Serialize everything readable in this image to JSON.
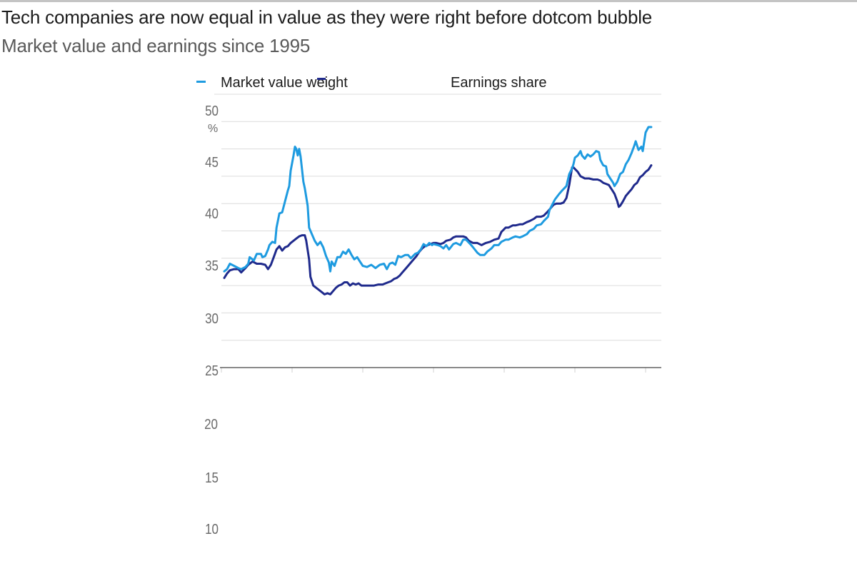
{
  "header": {
    "title": "Tech companies are now equal in value as they were right before dotcom bubble",
    "subtitle": "Market value and earnings since 1995"
  },
  "colors": {
    "market_value": "#1e9be0",
    "earnings": "#1f2a8c",
    "grid": "#dcdcdc",
    "axis": "#444444"
  },
  "chart_data": {
    "type": "line",
    "title": "Tech companies are now equal in value as they were right before dotcom bubble",
    "subtitle": "Market value and earnings since 1995",
    "xlabel": "",
    "ylabel": "%",
    "y_unit_label": "%",
    "ylim": [
      25,
      50
    ],
    "xlim": [
      1995,
      2026.5
    ],
    "grid": true,
    "grid_step": 2.5,
    "x_ticks": [
      1995,
      2000,
      2005,
      2010,
      2015,
      2020,
      2025
    ],
    "y_tick_labels": [
      "50",
      "45",
      "40",
      "35",
      "30",
      "25",
      "20",
      "15",
      "10"
    ],
    "legend": {
      "placement": "top",
      "entries": [
        "Market value weight",
        "Earnings share"
      ]
    },
    "series": [
      {
        "name": "Market value weight",
        "color": "#1e9be0",
        "points": [
          [
            1995.2,
            33.8
          ],
          [
            1995.4,
            34.0
          ],
          [
            1995.6,
            34.5
          ],
          [
            1995.9,
            34.3
          ],
          [
            1996.2,
            34.1
          ],
          [
            1996.4,
            34.0
          ],
          [
            1996.7,
            34.2
          ],
          [
            1996.9,
            34.5
          ],
          [
            1997.0,
            35.1
          ],
          [
            1997.3,
            34.8
          ],
          [
            1997.5,
            35.4
          ],
          [
            1997.8,
            35.4
          ],
          [
            1997.9,
            35.1
          ],
          [
            1998.1,
            35.2
          ],
          [
            1998.3,
            35.8
          ],
          [
            1998.4,
            36.2
          ],
          [
            1998.6,
            36.5
          ],
          [
            1998.8,
            36.4
          ],
          [
            1998.9,
            37.8
          ],
          [
            1999.1,
            39.1
          ],
          [
            1999.3,
            39.2
          ],
          [
            1999.5,
            40.2
          ],
          [
            1999.7,
            41.2
          ],
          [
            1999.8,
            41.6
          ],
          [
            1999.9,
            43.0
          ],
          [
            2000.1,
            44.4
          ],
          [
            2000.2,
            45.2
          ],
          [
            2000.3,
            45.0
          ],
          [
            2000.4,
            44.4
          ],
          [
            2000.5,
            45.0
          ],
          [
            2000.6,
            44.3
          ],
          [
            2000.8,
            42.0
          ],
          [
            2000.9,
            41.4
          ],
          [
            2001.1,
            39.8
          ],
          [
            2001.2,
            37.8
          ],
          [
            2001.4,
            37.2
          ],
          [
            2001.6,
            36.6
          ],
          [
            2001.8,
            36.2
          ],
          [
            2002.0,
            36.5
          ],
          [
            2002.2,
            36.0
          ],
          [
            2002.4,
            35.2
          ],
          [
            2002.6,
            34.6
          ],
          [
            2002.7,
            33.8
          ],
          [
            2002.8,
            34.7
          ],
          [
            2003.0,
            34.3
          ],
          [
            2003.2,
            35.1
          ],
          [
            2003.4,
            35.1
          ],
          [
            2003.6,
            35.6
          ],
          [
            2003.8,
            35.4
          ],
          [
            2004.0,
            35.8
          ],
          [
            2004.2,
            35.3
          ],
          [
            2004.4,
            34.9
          ],
          [
            2004.6,
            35.1
          ],
          [
            2004.8,
            34.7
          ],
          [
            2005.0,
            34.3
          ],
          [
            2005.3,
            34.2
          ],
          [
            2005.6,
            34.4
          ],
          [
            2005.9,
            34.1
          ],
          [
            2006.2,
            34.4
          ],
          [
            2006.5,
            34.5
          ],
          [
            2006.7,
            34.0
          ],
          [
            2006.9,
            34.5
          ],
          [
            2007.1,
            34.6
          ],
          [
            2007.3,
            34.4
          ],
          [
            2007.5,
            35.2
          ],
          [
            2007.7,
            35.1
          ],
          [
            2008.0,
            35.3
          ],
          [
            2008.2,
            35.3
          ],
          [
            2008.4,
            35.0
          ],
          [
            2008.7,
            35.4
          ],
          [
            2008.9,
            35.5
          ],
          [
            2009.1,
            35.8
          ],
          [
            2009.3,
            36.3
          ],
          [
            2009.5,
            36.1
          ],
          [
            2009.7,
            36.4
          ],
          [
            2009.9,
            36.2
          ],
          [
            2010.0,
            36.3
          ],
          [
            2010.3,
            36.2
          ],
          [
            2010.5,
            36.1
          ],
          [
            2010.7,
            35.9
          ],
          [
            2010.9,
            36.2
          ],
          [
            2011.1,
            35.8
          ],
          [
            2011.4,
            36.3
          ],
          [
            2011.6,
            36.4
          ],
          [
            2011.9,
            36.2
          ],
          [
            2012.1,
            36.7
          ],
          [
            2012.3,
            36.7
          ],
          [
            2012.6,
            36.3
          ],
          [
            2012.8,
            36.0
          ],
          [
            2013.1,
            35.5
          ],
          [
            2013.3,
            35.3
          ],
          [
            2013.6,
            35.3
          ],
          [
            2013.8,
            35.6
          ],
          [
            2014.1,
            35.9
          ],
          [
            2014.3,
            36.2
          ],
          [
            2014.6,
            36.2
          ],
          [
            2014.8,
            36.5
          ],
          [
            2015.1,
            36.7
          ],
          [
            2015.3,
            36.7
          ],
          [
            2015.6,
            36.9
          ],
          [
            2015.8,
            37.0
          ],
          [
            2016.1,
            36.9
          ],
          [
            2016.3,
            37.0
          ],
          [
            2016.6,
            37.2
          ],
          [
            2016.8,
            37.5
          ],
          [
            2017.1,
            37.7
          ],
          [
            2017.3,
            38.0
          ],
          [
            2017.6,
            38.1
          ],
          [
            2017.8,
            38.4
          ],
          [
            2018.1,
            38.8
          ],
          [
            2018.2,
            39.4
          ],
          [
            2018.4,
            39.9
          ],
          [
            2018.6,
            40.4
          ],
          [
            2018.9,
            40.9
          ],
          [
            2019.1,
            41.2
          ],
          [
            2019.4,
            41.6
          ],
          [
            2019.6,
            42.7
          ],
          [
            2019.8,
            43.2
          ],
          [
            2019.9,
            43.6
          ],
          [
            2020.0,
            44.2
          ],
          [
            2020.2,
            44.4
          ],
          [
            2020.4,
            44.8
          ],
          [
            2020.5,
            44.4
          ],
          [
            2020.7,
            44.1
          ],
          [
            2020.9,
            44.5
          ],
          [
            2021.1,
            44.3
          ],
          [
            2021.3,
            44.5
          ],
          [
            2021.5,
            44.8
          ],
          [
            2021.7,
            44.7
          ],
          [
            2021.8,
            44.0
          ],
          [
            2022.0,
            43.5
          ],
          [
            2022.2,
            43.4
          ],
          [
            2022.3,
            42.7
          ],
          [
            2022.5,
            42.3
          ],
          [
            2022.7,
            41.9
          ],
          [
            2022.8,
            41.6
          ],
          [
            2023.0,
            42.0
          ],
          [
            2023.2,
            42.7
          ],
          [
            2023.4,
            42.9
          ],
          [
            2023.6,
            43.6
          ],
          [
            2023.8,
            44.0
          ],
          [
            2024.0,
            44.6
          ],
          [
            2024.2,
            45.3
          ],
          [
            2024.3,
            45.7
          ],
          [
            2024.5,
            44.9
          ],
          [
            2024.7,
            45.2
          ],
          [
            2024.8,
            44.8
          ],
          [
            2025.0,
            46.5
          ],
          [
            2025.2,
            47.0
          ],
          [
            2025.4,
            47.0
          ]
        ]
      },
      {
        "name": "Earnings share",
        "color": "#1f2a8c",
        "points": [
          [
            1995.2,
            33.2
          ],
          [
            1995.4,
            33.6
          ],
          [
            1995.6,
            33.9
          ],
          [
            1995.9,
            34.0
          ],
          [
            1996.2,
            34.0
          ],
          [
            1996.4,
            33.7
          ],
          [
            1996.7,
            34.1
          ],
          [
            1996.9,
            34.4
          ],
          [
            1997.2,
            34.7
          ],
          [
            1997.5,
            34.5
          ],
          [
            1997.8,
            34.5
          ],
          [
            1998.1,
            34.4
          ],
          [
            1998.3,
            34.0
          ],
          [
            1998.5,
            34.4
          ],
          [
            1998.7,
            35.1
          ],
          [
            1998.9,
            35.8
          ],
          [
            1999.1,
            36.1
          ],
          [
            1999.3,
            35.7
          ],
          [
            1999.5,
            36.0
          ],
          [
            1999.7,
            36.1
          ],
          [
            1999.9,
            36.4
          ],
          [
            2000.1,
            36.6
          ],
          [
            2000.3,
            36.8
          ],
          [
            2000.5,
            37.0
          ],
          [
            2000.7,
            37.1
          ],
          [
            2000.9,
            37.1
          ],
          [
            2001.0,
            36.6
          ],
          [
            2001.2,
            34.9
          ],
          [
            2001.3,
            33.3
          ],
          [
            2001.5,
            32.5
          ],
          [
            2001.7,
            32.3
          ],
          [
            2001.9,
            32.1
          ],
          [
            2002.1,
            31.9
          ],
          [
            2002.3,
            31.7
          ],
          [
            2002.5,
            31.8
          ],
          [
            2002.7,
            31.7
          ],
          [
            2002.9,
            32.0
          ],
          [
            2003.1,
            32.3
          ],
          [
            2003.3,
            32.5
          ],
          [
            2003.5,
            32.6
          ],
          [
            2003.7,
            32.8
          ],
          [
            2003.9,
            32.8
          ],
          [
            2004.1,
            32.5
          ],
          [
            2004.3,
            32.7
          ],
          [
            2004.5,
            32.6
          ],
          [
            2004.7,
            32.7
          ],
          [
            2004.9,
            32.5
          ],
          [
            2005.2,
            32.5
          ],
          [
            2005.5,
            32.5
          ],
          [
            2005.8,
            32.5
          ],
          [
            2006.1,
            32.6
          ],
          [
            2006.4,
            32.6
          ],
          [
            2006.6,
            32.7
          ],
          [
            2006.8,
            32.8
          ],
          [
            2007.0,
            32.9
          ],
          [
            2007.2,
            33.1
          ],
          [
            2007.4,
            33.2
          ],
          [
            2007.6,
            33.4
          ],
          [
            2007.8,
            33.7
          ],
          [
            2008.0,
            34.0
          ],
          [
            2008.2,
            34.3
          ],
          [
            2008.4,
            34.6
          ],
          [
            2008.6,
            34.9
          ],
          [
            2008.8,
            35.2
          ],
          [
            2009.0,
            35.6
          ],
          [
            2009.2,
            35.9
          ],
          [
            2009.4,
            36.1
          ],
          [
            2009.6,
            36.2
          ],
          [
            2009.8,
            36.3
          ],
          [
            2010.0,
            36.4
          ],
          [
            2010.2,
            36.4
          ],
          [
            2010.5,
            36.3
          ],
          [
            2010.7,
            36.4
          ],
          [
            2010.9,
            36.6
          ],
          [
            2011.2,
            36.7
          ],
          [
            2011.4,
            36.9
          ],
          [
            2011.6,
            37.0
          ],
          [
            2011.9,
            37.0
          ],
          [
            2012.1,
            37.0
          ],
          [
            2012.3,
            36.9
          ],
          [
            2012.5,
            36.6
          ],
          [
            2012.8,
            36.4
          ],
          [
            2013.1,
            36.4
          ],
          [
            2013.4,
            36.2
          ],
          [
            2013.7,
            36.4
          ],
          [
            2014.0,
            36.5
          ],
          [
            2014.3,
            36.7
          ],
          [
            2014.6,
            36.8
          ],
          [
            2014.8,
            37.4
          ],
          [
            2015.1,
            37.8
          ],
          [
            2015.3,
            37.8
          ],
          [
            2015.6,
            38.0
          ],
          [
            2015.8,
            38.0
          ],
          [
            2016.1,
            38.1
          ],
          [
            2016.3,
            38.1
          ],
          [
            2016.6,
            38.3
          ],
          [
            2016.8,
            38.4
          ],
          [
            2017.1,
            38.6
          ],
          [
            2017.3,
            38.8
          ],
          [
            2017.6,
            38.8
          ],
          [
            2017.8,
            38.9
          ],
          [
            2018.1,
            39.3
          ],
          [
            2018.3,
            39.6
          ],
          [
            2018.5,
            39.9
          ],
          [
            2018.7,
            40.0
          ],
          [
            2019.0,
            40.0
          ],
          [
            2019.2,
            40.1
          ],
          [
            2019.4,
            40.5
          ],
          [
            2019.6,
            41.7
          ],
          [
            2019.8,
            43.3
          ],
          [
            2019.9,
            43.3
          ],
          [
            2020.2,
            42.9
          ],
          [
            2020.4,
            42.5
          ],
          [
            2020.7,
            42.3
          ],
          [
            2021.0,
            42.3
          ],
          [
            2021.3,
            42.2
          ],
          [
            2021.6,
            42.2
          ],
          [
            2021.8,
            42.1
          ],
          [
            2022.0,
            41.9
          ],
          [
            2022.2,
            41.8
          ],
          [
            2022.4,
            41.7
          ],
          [
            2022.6,
            41.3
          ],
          [
            2022.8,
            40.9
          ],
          [
            2023.0,
            40.2
          ],
          [
            2023.1,
            39.7
          ],
          [
            2023.2,
            39.8
          ],
          [
            2023.4,
            40.2
          ],
          [
            2023.6,
            40.7
          ],
          [
            2023.8,
            41.0
          ],
          [
            2024.0,
            41.3
          ],
          [
            2024.2,
            41.7
          ],
          [
            2024.4,
            41.9
          ],
          [
            2024.6,
            42.4
          ],
          [
            2024.8,
            42.6
          ],
          [
            2025.0,
            42.9
          ],
          [
            2025.2,
            43.1
          ],
          [
            2025.4,
            43.5
          ]
        ]
      }
    ]
  }
}
